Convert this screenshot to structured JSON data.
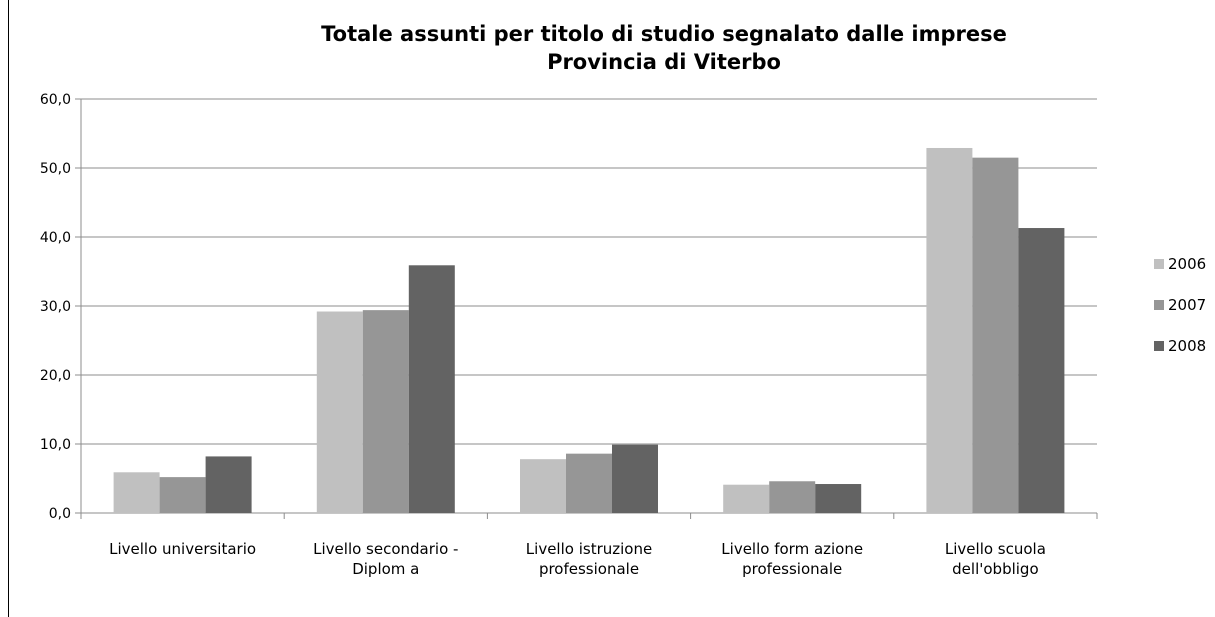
{
  "chart_data": {
    "type": "bar",
    "title": "Totale assunti per titolo di studio segnalato dalle imprese",
    "subtitle": "Provincia di Viterbo",
    "categories": [
      [
        "Livello universitario"
      ],
      [
        "Livello secondario -",
        "Diplom a"
      ],
      [
        "Livello istruzione",
        "professionale"
      ],
      [
        "Livello form azione",
        "professionale"
      ],
      [
        "Livello scuola",
        "dell'obbligo"
      ]
    ],
    "series": [
      {
        "name": "2006",
        "color": "#c0c0c0",
        "values": [
          5.9,
          29.2,
          7.8,
          4.1,
          52.9
        ]
      },
      {
        "name": "2007",
        "color": "#969696",
        "values": [
          5.2,
          29.4,
          8.6,
          4.6,
          51.5
        ]
      },
      {
        "name": "2008",
        "color": "#636363",
        "values": [
          8.2,
          35.9,
          9.9,
          4.2,
          41.3
        ]
      }
    ],
    "ylim": [
      0,
      60
    ],
    "yticks": [
      "0,0",
      "10,0",
      "20,0",
      "30,0",
      "40,0",
      "50,0",
      "60,0"
    ],
    "grid": true,
    "legend": "right"
  }
}
